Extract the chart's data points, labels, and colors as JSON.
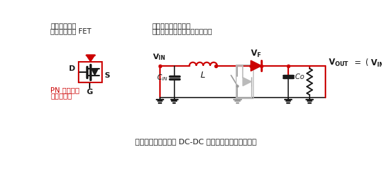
{
  "title": "同步整流方式升压型 DC-DC 转换器停止工作时的输出",
  "text_top_left_1": "同步整流中，",
  "text_top_left_2": "高边开关使用 FET",
  "text_top_right_1": "即使关断高边开关，",
  "text_top_right_2": "也会流过寄生二极管带来的电流",
  "label_D": "D",
  "label_S": "S",
  "label_G": "G",
  "label_pn": "PN 结形成的",
  "label_pn2": "寄生二极管",
  "red": "#CC0000",
  "black": "#1a1a1a",
  "gray": "#999999",
  "lightgray": "#BBBBBB",
  "bg": "#FFFFFF",
  "fig_width": 5.54,
  "fig_height": 2.46,
  "dpi": 100
}
